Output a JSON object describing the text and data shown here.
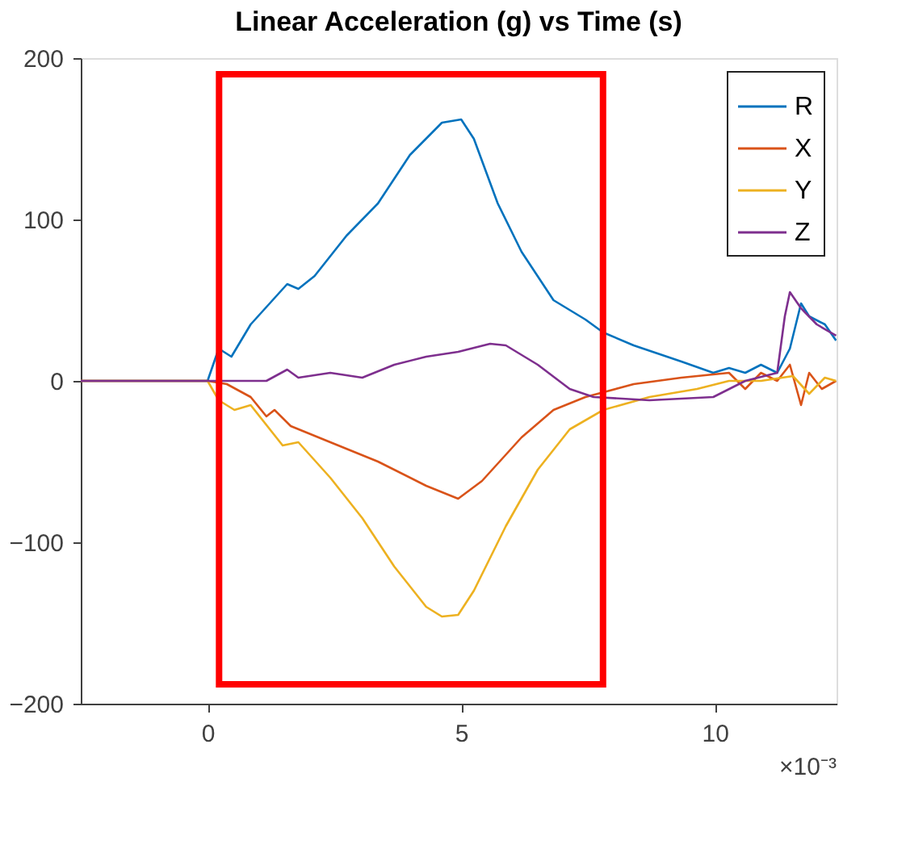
{
  "chart_data": {
    "type": "line",
    "title": "Linear Acceleration (g) vs Time (s)",
    "xlim": [
      -2.5,
      12.4
    ],
    "ylim": [
      -200,
      200
    ],
    "xticks": [
      0,
      5,
      10
    ],
    "yticks": [
      -200,
      -100,
      0,
      100,
      200
    ],
    "grid": false,
    "legend": "top right",
    "line_style": "solid",
    "marker": "none",
    "annotations": [
      "×10⁻³"
    ],
    "series": [
      {
        "name": "R",
        "color": "#0072bd",
        "x": [
          -2.5,
          0,
          0.22,
          0.47,
          0.85,
          1.57,
          1.79,
          2.11,
          2.74,
          3.36,
          3.99,
          4.62,
          5.0,
          5.25,
          5.72,
          6.19,
          6.82,
          7.45,
          7.8,
          8.4,
          9.34,
          9.97,
          10.28,
          10.6,
          10.91,
          11.23,
          11.48,
          11.7,
          11.86,
          12.17,
          12.39
        ],
        "values": [
          0,
          0,
          20,
          15,
          35,
          60,
          57,
          65,
          90,
          110,
          140,
          160,
          162,
          150,
          110,
          80,
          50,
          38,
          30,
          22,
          12,
          5,
          8,
          5,
          10,
          5,
          20,
          48,
          40,
          35,
          25
        ]
      },
      {
        "name": "X",
        "color": "#d95319",
        "x": [
          -2.5,
          0,
          0.38,
          0.85,
          1.16,
          1.32,
          1.64,
          2.42,
          3.36,
          4.31,
          4.94,
          5.41,
          6.19,
          6.82,
          7.45,
          8.4,
          9.34,
          10.28,
          10.6,
          10.91,
          11.23,
          11.48,
          11.7,
          11.86,
          12.11,
          12.39
        ],
        "values": [
          0,
          0,
          -2,
          -10,
          -22,
          -18,
          -28,
          -38,
          -50,
          -65,
          -73,
          -62,
          -35,
          -18,
          -10,
          -2,
          2,
          5,
          -5,
          5,
          0,
          10,
          -15,
          5,
          -5,
          0
        ]
      },
      {
        "name": "Y",
        "color": "#edb120",
        "x": [
          -2.5,
          0,
          0.22,
          0.53,
          0.85,
          1.48,
          1.79,
          2.42,
          3.05,
          3.68,
          4.31,
          4.62,
          4.94,
          5.25,
          5.88,
          6.51,
          7.14,
          7.8,
          8.71,
          9.65,
          10.28,
          10.91,
          11.54,
          11.86,
          12.17,
          12.39
        ],
        "values": [
          0,
          0,
          -12,
          -18,
          -15,
          -40,
          -38,
          -60,
          -85,
          -115,
          -140,
          -146,
          -145,
          -130,
          -90,
          -55,
          -30,
          -18,
          -10,
          -5,
          0,
          0,
          3,
          -8,
          2,
          0
        ]
      },
      {
        "name": "Z",
        "color": "#7e2f8e",
        "x": [
          -2.5,
          0,
          1.16,
          1.57,
          1.79,
          2.42,
          3.05,
          3.68,
          4.31,
          4.94,
          5.57,
          5.88,
          6.51,
          7.14,
          7.61,
          8.71,
          9.97,
          10.6,
          11.23,
          11.38,
          11.48,
          11.7,
          12.01,
          12.39
        ],
        "values": [
          0,
          0,
          0,
          7,
          2,
          5,
          2,
          10,
          15,
          18,
          23,
          22,
          10,
          -5,
          -10,
          -12,
          -10,
          0,
          5,
          40,
          55,
          45,
          35,
          28
        ]
      }
    ]
  }
}
